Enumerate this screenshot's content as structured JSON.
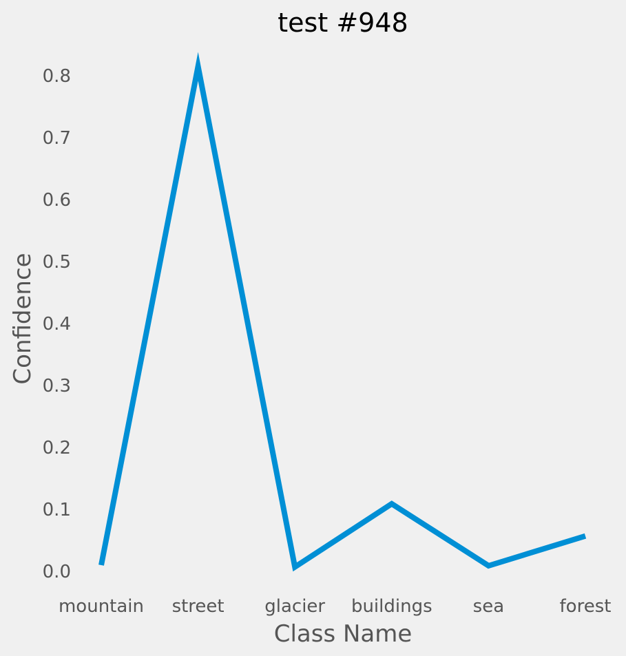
{
  "chart_data": {
    "type": "line",
    "title": "test #948",
    "xlabel": "Class Name",
    "ylabel": "Confidence",
    "categories": [
      "mountain",
      "street",
      "glacier",
      "buildings",
      "sea",
      "forest"
    ],
    "series": [
      {
        "values": [
          0.01,
          0.815,
          0.007,
          0.109,
          0.009,
          0.057
        ]
      }
    ],
    "yticks": [
      0.0,
      0.1,
      0.2,
      0.3,
      0.4,
      0.5,
      0.6,
      0.7,
      0.8
    ],
    "ytick_labels": [
      "0.0",
      "0.1",
      "0.2",
      "0.3",
      "0.4",
      "0.5",
      "0.6",
      "0.7",
      "0.8"
    ],
    "ylim": [
      -0.01,
      0.85
    ],
    "grid": false,
    "colors": {
      "line": "#008fd5",
      "background": "#f0f0f0",
      "tick_text": "#555555",
      "title_text": "#000000"
    }
  }
}
